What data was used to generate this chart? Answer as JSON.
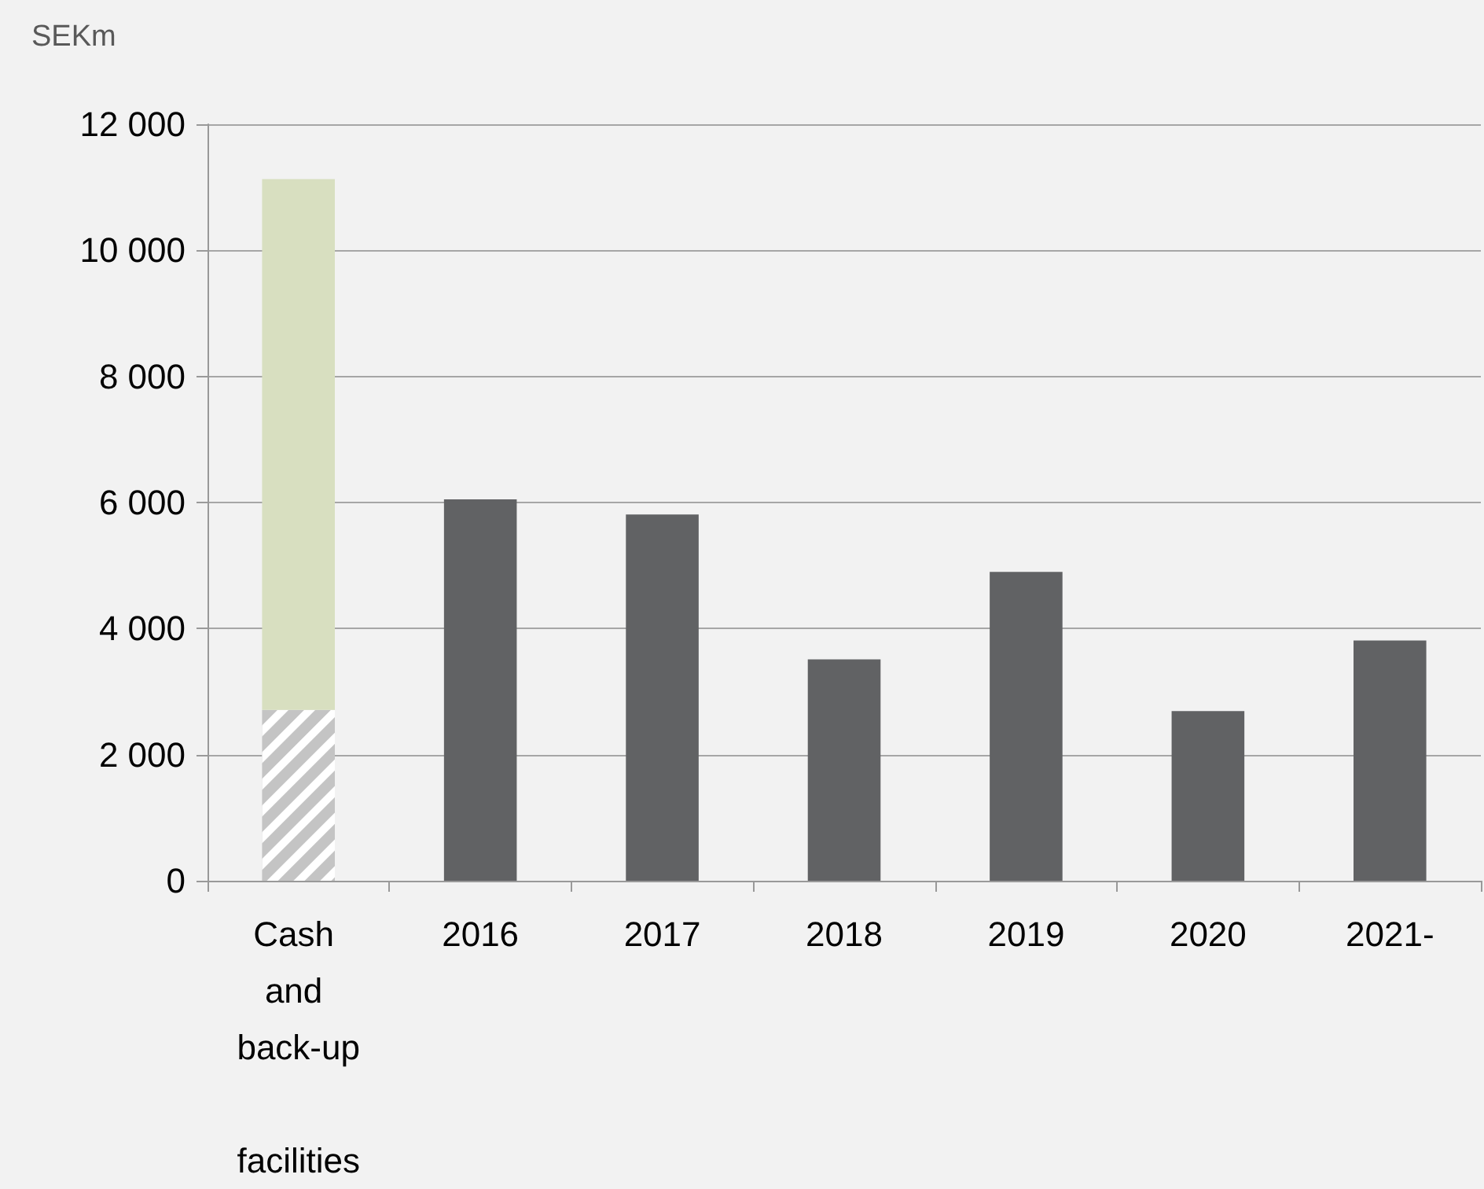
{
  "chart_data": {
    "type": "bar",
    "ylabel": "SEKm",
    "categories": [
      "Cash and back-up facilities",
      "2016",
      "2017",
      "2018",
      "2019",
      "2020",
      "2021-"
    ],
    "stacked": true,
    "series": [
      {
        "color": "#c4c4c4",
        "values": [
          2710,
          null,
          null,
          null,
          null,
          null,
          null
        ]
      },
      {
        "color": "#d8dfc0",
        "values": [
          8420,
          null,
          null,
          null,
          null,
          null,
          null
        ]
      },
      {
        "color": "#616264",
        "values": [
          null,
          6050,
          5810,
          3510,
          4900,
          2690,
          3810
        ]
      }
    ],
    "ylim": [
      0,
      12000
    ],
    "yticks": [
      {
        "value": 0,
        "label": "0"
      },
      {
        "value": 2000,
        "label": "2 000"
      },
      {
        "value": 4000,
        "label": "4 000"
      },
      {
        "value": 6000,
        "label": "6 000"
      },
      {
        "value": 8000,
        "label": "8 000"
      },
      {
        "value": 10000,
        "label": "10 000"
      },
      {
        "value": 12000,
        "label": "12 000"
      }
    ],
    "grid": "y"
  }
}
